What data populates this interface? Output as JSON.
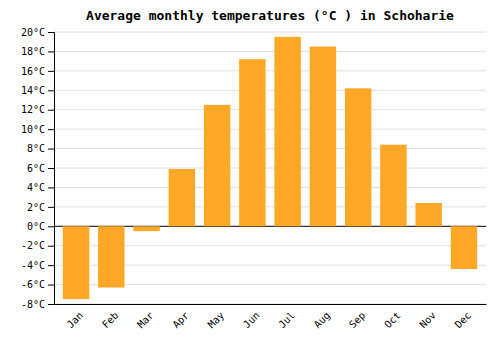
{
  "chart_data": {
    "type": "bar",
    "title": "Average monthly temperatures (°C ) in Schoharie",
    "categories": [
      "Jan",
      "Feb",
      "Mar",
      "Apr",
      "May",
      "Jun",
      "Jul",
      "Aug",
      "Sep",
      "Oct",
      "Nov",
      "Dec"
    ],
    "values": [
      -7.5,
      -6.3,
      -0.5,
      5.9,
      12.5,
      17.2,
      19.5,
      18.5,
      14.2,
      8.4,
      2.4,
      -4.4
    ],
    "color": "#FFA726",
    "ylim": [
      -8,
      20
    ],
    "yticks": [
      {
        "value": -8,
        "label": "-8°C"
      },
      {
        "value": -6,
        "label": "-6°C"
      },
      {
        "value": -4,
        "label": "-4°C"
      },
      {
        "value": -2,
        "label": "-2°C"
      },
      {
        "value": 0,
        "label": "0°C"
      },
      {
        "value": 2,
        "label": "2°C"
      },
      {
        "value": 4,
        "label": "4°C"
      },
      {
        "value": 6,
        "label": "6°C"
      },
      {
        "value": 8,
        "label": "8°C"
      },
      {
        "value": 10,
        "label": "10°C"
      },
      {
        "value": 12,
        "label": "12°C"
      },
      {
        "value": 14,
        "label": "14°C"
      },
      {
        "value": 16,
        "label": "16°C"
      },
      {
        "value": 18,
        "label": "18°C"
      },
      {
        "value": 20,
        "label": "20°C"
      }
    ],
    "grid": true
  }
}
